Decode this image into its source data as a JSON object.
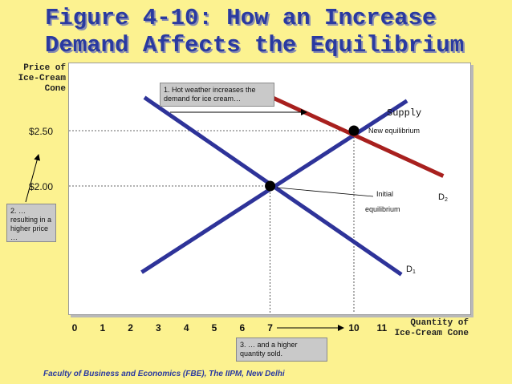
{
  "title_line1": "Figure 4-10: How an Increase",
  "title_line2": "Demand Affects the Equilibrium",
  "footer": "Faculty of Business and Economics (FBE), The IIPM, New Delhi",
  "chart_data": {
    "type": "line",
    "ylabel": "Price of\nIce-Cream\nCone",
    "xlabel": "Quantity of\nIce-Cream Cone",
    "x_ticks": [
      0,
      1,
      2,
      3,
      4,
      5,
      6,
      7,
      10,
      11
    ],
    "y_ticks": [
      {
        "value": 2.0,
        "label": "$2.00"
      },
      {
        "value": 2.5,
        "label": "$2.50"
      }
    ],
    "series": [
      {
        "name": "Supply",
        "color": "#2E3399",
        "points": [
          [
            2.4,
            1.22
          ],
          [
            11.9,
            2.77
          ]
        ]
      },
      {
        "name": "D1",
        "color": "#2E3399",
        "points": [
          [
            2.5,
            2.8
          ],
          [
            11.7,
            1.2
          ]
        ]
      },
      {
        "name": "D2",
        "color": "#A8201E",
        "points": [
          [
            6.3,
            2.89
          ],
          [
            13.2,
            2.09
          ]
        ]
      }
    ],
    "equilibria": [
      {
        "label": "Initial equilibrium",
        "x": 7,
        "y": 2.0
      },
      {
        "label": "New equilibrium",
        "x": 10,
        "y": 2.5
      }
    ],
    "annotations": {
      "supply": "Supply",
      "d1_main": "D",
      "d1_sub": "1",
      "d2_main": "D",
      "d2_sub": "2",
      "new_eq": "New equilibrium",
      "initial_eq_line1": "Initial",
      "initial_eq_line2": "equilibrium",
      "callout1": "1. Hot weather increases the demand for ice cream…",
      "callout2": "2. … resulting in a higher price …",
      "callout3": "3. … and a higher quantity sold."
    }
  }
}
